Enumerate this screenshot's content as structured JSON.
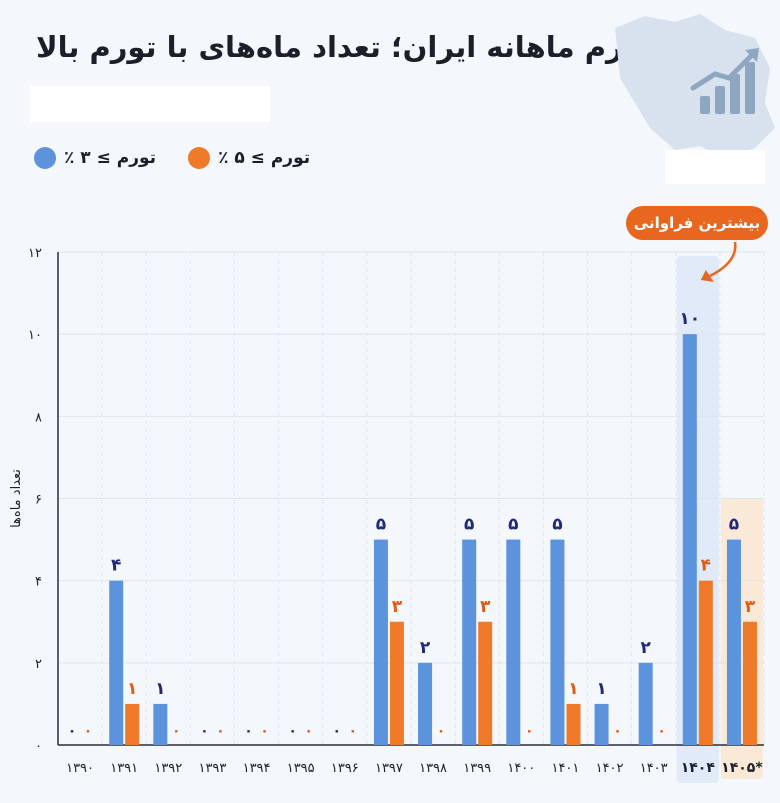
{
  "title": "تورم ماهانه ایران؛ تعداد ماه‌های با تورم بالا",
  "legend": {
    "series_a": "تورم ≥ ۳ ٪",
    "series_b": "تورم ≥ ۵ ٪"
  },
  "callout": "بیشترین فراوانی",
  "colors": {
    "series_a": "#5b93dc",
    "series_b": "#ef7a2a",
    "label_a": "#1e2a78",
    "label_b": "#e05c14",
    "highlight_a": "#e0eaf8",
    "highlight_b": "#fbe9d8"
  },
  "chart_data": {
    "type": "bar",
    "title": "تورم ماهانه ایران؛ تعداد ماه‌های با تورم بالا",
    "ylabel": "تعداد ماه‌ها",
    "xlabel": "",
    "ylim": [
      0,
      12
    ],
    "yticks": [
      0,
      2,
      4,
      6,
      8,
      10,
      12
    ],
    "ytick_labels": [
      "۰",
      "۲",
      "۴",
      "۶",
      "۸",
      "۱۰",
      "۱۲"
    ],
    "categories": [
      "۱۳۹۰",
      "۱۳۹۱",
      "۱۳۹۲",
      "۱۳۹۳",
      "۱۳۹۴",
      "۱۳۹۵",
      "۱۳۹۶",
      "۱۳۹۷",
      "۱۳۹۸",
      "۱۳۹۹",
      "۱۴۰۰",
      "۱۴۰۱",
      "۱۴۰۲",
      "۱۴۰۳",
      "۱۴۰۴",
      "۱۴۰۵*"
    ],
    "series": [
      {
        "name": "تورم ≥ ۳ ٪",
        "values": [
          0,
          4,
          1,
          0,
          0,
          0,
          0,
          5,
          2,
          5,
          5,
          5,
          1,
          2,
          10,
          5
        ],
        "labels": [
          "۰",
          "۴",
          "۱",
          "۰",
          "۰",
          "۰",
          "۰",
          "۵",
          "۲",
          "۵",
          "۵",
          "۵",
          "۱",
          "۲",
          "۱۰",
          "۵"
        ]
      },
      {
        "name": "تورم ≥ ۵ ٪",
        "values": [
          0,
          1,
          0,
          0,
          0,
          0,
          0,
          3,
          0,
          3,
          0,
          1,
          0,
          0,
          4,
          3
        ],
        "labels": [
          "۰",
          "۱",
          "۰",
          "۰",
          "۰",
          "۰",
          "۰",
          "۳",
          "۰",
          "۳",
          "۰",
          "۱",
          "۰",
          "۰",
          "۴",
          "۳"
        ]
      }
    ],
    "bold_categories": [
      "۱۴۰۴",
      "۱۴۰۵*"
    ],
    "highlight_category": "۱۴۰۴",
    "grid": true,
    "legend_position": "top-left"
  }
}
